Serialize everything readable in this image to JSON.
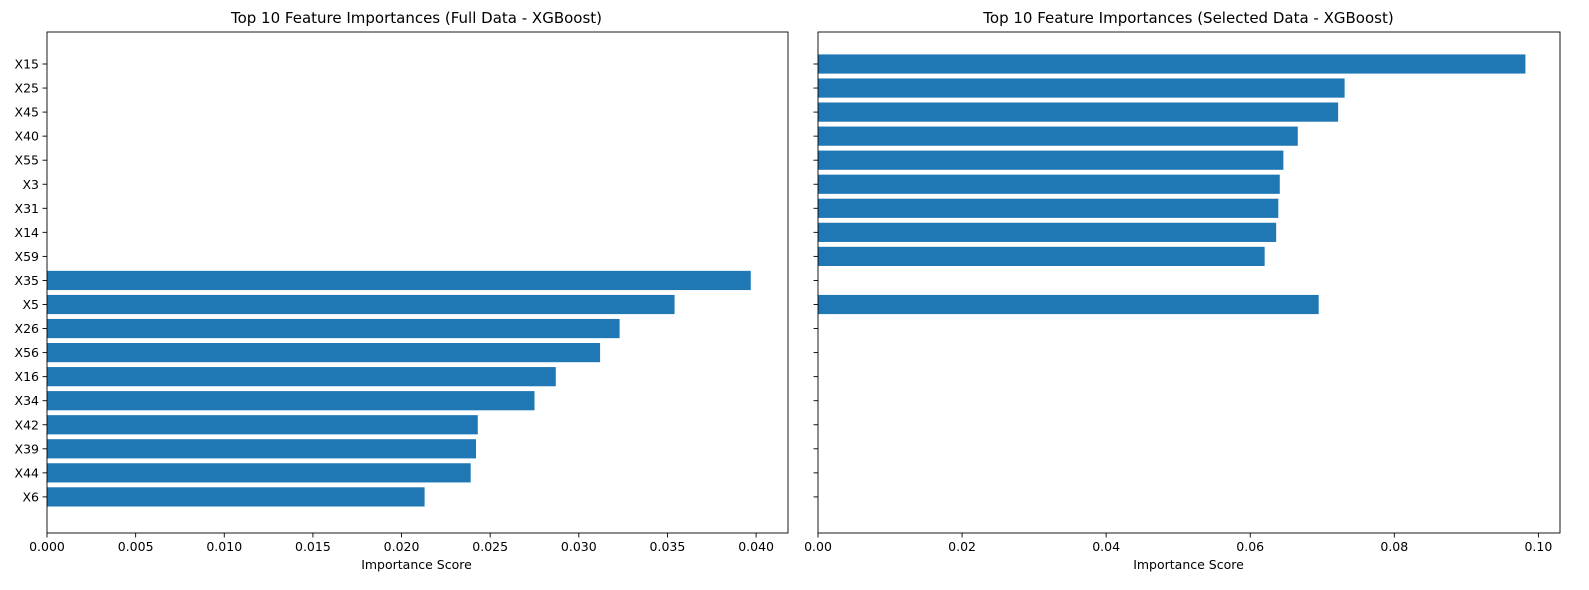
{
  "chart_data": [
    {
      "type": "bar",
      "orientation": "horizontal",
      "title": "Top 10 Feature Importances (Full Data - XGBoost)",
      "xlabel": "Importance Score",
      "ylabel": "",
      "xlim": [
        0,
        0.0418
      ],
      "xticks": [
        "0.000",
        "0.005",
        "0.010",
        "0.015",
        "0.020",
        "0.025",
        "0.030",
        "0.035",
        "0.040"
      ],
      "categories": [
        "X15",
        "X25",
        "X45",
        "X40",
        "X55",
        "X3",
        "X31",
        "X14",
        "X59",
        "X35",
        "X5",
        "X26",
        "X56",
        "X16",
        "X34",
        "X42",
        "X39",
        "X44",
        "X6"
      ],
      "values": [
        null,
        null,
        null,
        null,
        null,
        null,
        null,
        null,
        null,
        0.0397,
        0.0354,
        0.0323,
        0.0312,
        0.0287,
        0.0275,
        0.0243,
        0.0242,
        0.0239,
        0.0213
      ],
      "color": "#1f77b4",
      "grid": false
    },
    {
      "type": "bar",
      "orientation": "horizontal",
      "title": "Top 10 Feature Importances (Selected Data - XGBoost)",
      "xlabel": "Importance Score",
      "ylabel": "",
      "xlim": [
        0,
        0.103
      ],
      "xticks": [
        "0.00",
        "0.02",
        "0.04",
        "0.06",
        "0.08",
        "0.10"
      ],
      "categories": [
        "X15",
        "X25",
        "X45",
        "X40",
        "X55",
        "X3",
        "X31",
        "X14",
        "X59",
        "X35",
        "X5",
        "X26",
        "X56",
        "X16",
        "X34",
        "X42",
        "X39",
        "X44",
        "X6"
      ],
      "values": [
        0.0982,
        0.0731,
        0.0722,
        0.0666,
        0.0646,
        0.0641,
        0.0639,
        0.0636,
        0.062,
        null,
        0.0695,
        null,
        null,
        null,
        null,
        null,
        null,
        null,
        null
      ],
      "color": "#1f77b4",
      "grid": false,
      "shared_y_axis": true
    }
  ]
}
